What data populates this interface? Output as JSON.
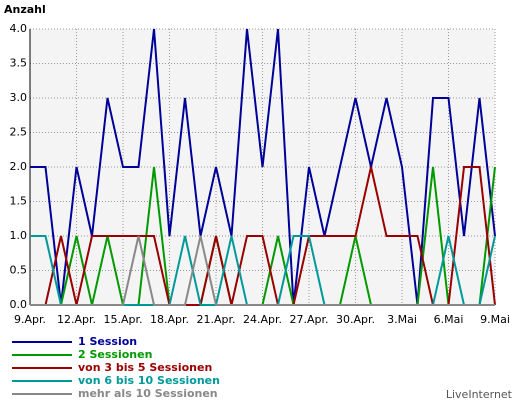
{
  "chart_data": {
    "type": "line",
    "ylabel": "Anzahl",
    "footer": "LiveInternet",
    "categories": [
      "9.Apr.",
      null,
      null,
      "12.Apr.",
      null,
      null,
      "15.Apr.",
      null,
      null,
      "18.Apr.",
      null,
      null,
      "21.Apr.",
      null,
      null,
      "24.Apr.",
      null,
      null,
      "27.Apr.",
      null,
      null,
      "30.Apr.",
      null,
      null,
      "3.Mai",
      null,
      null,
      "6.Mai",
      null,
      null,
      "9.Mai"
    ],
    "series": [
      {
        "name": "1 Session",
        "color": "#000099",
        "values": [
          2,
          2,
          0,
          2,
          1,
          3,
          2,
          2,
          4,
          1,
          3,
          1,
          2,
          1,
          4,
          2,
          4,
          0,
          2,
          1,
          2,
          3,
          2,
          3,
          2,
          0,
          3,
          3,
          1,
          3,
          1
        ]
      },
      {
        "name": "2 Sessionen",
        "color": "#009900",
        "values": [
          0,
          0,
          0,
          1,
          0,
          1,
          0,
          0,
          2,
          0,
          0,
          0,
          1,
          0,
          0,
          0,
          1,
          0,
          0,
          0,
          0,
          1,
          0,
          0,
          0,
          0,
          2,
          0,
          0,
          0,
          2
        ]
      },
      {
        "name": "von 3 bis 5 Sessionen",
        "color": "#990000",
        "values": [
          0,
          0,
          1,
          0,
          1,
          1,
          1,
          1,
          1,
          0,
          0,
          0,
          1,
          0,
          1,
          1,
          0,
          0,
          1,
          1,
          1,
          1,
          2,
          1,
          1,
          1,
          0,
          0,
          2,
          2,
          0
        ]
      },
      {
        "name": "von 6 bis 10 Sessionen",
        "color": "#009999",
        "values": [
          1,
          1,
          0,
          0,
          0,
          0,
          0,
          0,
          0,
          0,
          1,
          0,
          0,
          1,
          0,
          0,
          0,
          1,
          1,
          0,
          0,
          0,
          0,
          0,
          0,
          0,
          0,
          1,
          0,
          0,
          1
        ]
      },
      {
        "name": "mehr als 10 Sessionen",
        "color": "#888888",
        "values": [
          0,
          0,
          0,
          0,
          0,
          0,
          0,
          1,
          0,
          0,
          0,
          1,
          0,
          0,
          0,
          0,
          0,
          0,
          0,
          0,
          0,
          0,
          0,
          0,
          0,
          0,
          0,
          0,
          0,
          0,
          0
        ]
      }
    ],
    "ylim": [
      0,
      4
    ],
    "yticks": [
      {
        "value": 0,
        "label": "0.0"
      },
      {
        "value": 0.5,
        "label": "0.5"
      },
      {
        "value": 1,
        "label": "1.0"
      },
      {
        "value": 1.5,
        "label": "1.5"
      },
      {
        "value": 2,
        "label": "2.0"
      },
      {
        "value": 2.5,
        "label": "2.5"
      },
      {
        "value": 3,
        "label": "3.0"
      },
      {
        "value": 3.5,
        "label": "3.5"
      },
      {
        "value": 4,
        "label": "4.0"
      }
    ],
    "grid": true
  }
}
